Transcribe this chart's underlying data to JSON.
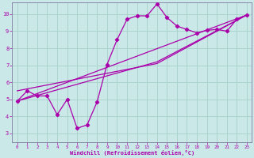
{
  "background_color": "#cbe8e8",
  "grid_color": "#aad4cc",
  "line_color": "#aa00aa",
  "marker_color": "#aa00aa",
  "xlabel": "Windchill (Refroidissement éolien,°C)",
  "xlim": [
    -0.5,
    23.5
  ],
  "ylim": [
    2.5,
    10.7
  ],
  "yticks": [
    3,
    4,
    5,
    6,
    7,
    8,
    9,
    10
  ],
  "xticks": [
    0,
    1,
    2,
    3,
    4,
    5,
    6,
    7,
    8,
    9,
    10,
    11,
    12,
    13,
    14,
    15,
    16,
    17,
    18,
    19,
    20,
    21,
    22,
    23
  ],
  "curve1_x": [
    0,
    1,
    2,
    3,
    4,
    5,
    6,
    7,
    8,
    9,
    10,
    11,
    12,
    13,
    14,
    15,
    16,
    17,
    18,
    19,
    20,
    21,
    22,
    23
  ],
  "curve1_y": [
    4.9,
    5.5,
    5.2,
    5.2,
    4.1,
    5.0,
    3.3,
    3.5,
    4.85,
    7.05,
    8.5,
    9.7,
    9.9,
    9.9,
    10.6,
    9.8,
    9.3,
    9.1,
    8.9,
    9.05,
    9.1,
    9.0,
    9.7,
    9.95
  ],
  "line2_x": [
    0,
    23
  ],
  "line2_y": [
    4.9,
    9.95
  ],
  "line3_x": [
    0,
    14,
    23
  ],
  "line3_y": [
    5.5,
    7.1,
    9.95
  ],
  "line4_x": [
    0,
    14,
    23
  ],
  "line4_y": [
    4.9,
    7.2,
    9.95
  ]
}
